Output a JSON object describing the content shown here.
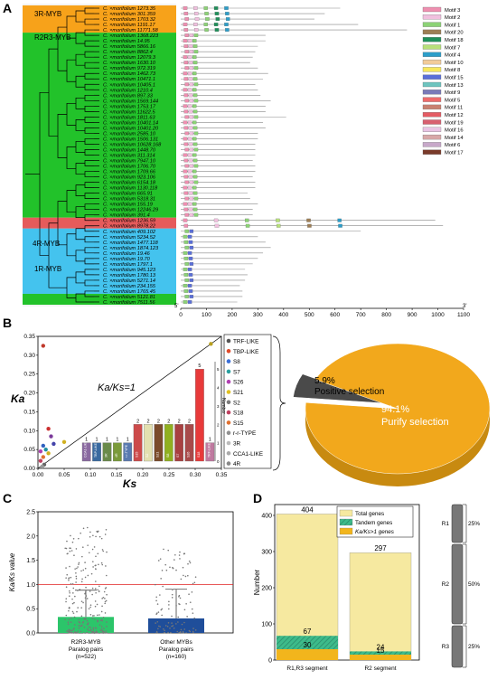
{
  "panels": {
    "a": {
      "letter": "A"
    },
    "b": {
      "letter": "B"
    },
    "c": {
      "letter": "C"
    },
    "d": {
      "letter": "D"
    }
  },
  "colors": {
    "orange": "#f7a21a",
    "green": "#22c22a",
    "red": "#e65b5b",
    "blue": "#44c3ee",
    "darkblue": "#1f4e9a",
    "pale_yellow": "#f6e9a0",
    "gold": "#f2b51c"
  },
  "panel_a": {
    "groups": [
      {
        "label": "3R-MYB",
        "color": "#f7a21a"
      },
      {
        "label": "R2R3-MYB",
        "color": "#22c22a"
      },
      {
        "label": "4R-MYB",
        "color": "#e65b5b"
      },
      {
        "label": "1R-MYB",
        "color": "#44c3ee"
      }
    ],
    "species_prefix": "C. ×morifolium",
    "genes": [
      "1273.35",
      "301.359",
      "1703.32",
      "1191.17",
      "11771.58",
      "1368.223",
      "14.95",
      "5866.16",
      "8862.4",
      "12079.3",
      "1630.10",
      "972.319",
      "1462.73",
      "10471.1",
      "10405.1",
      "1210.4",
      "897.33",
      "1569.144",
      "1753.17",
      "11622.5",
      "1811.63",
      "10401.14",
      "10401.20",
      "2585.10",
      "1506.131",
      "10628.168",
      "1448.70",
      "311.314",
      "7947.10",
      "1706.70",
      "1709.66",
      "923.106",
      "6154.18",
      "1130.118",
      "665.91",
      "5318.31",
      "155.19",
      "12246.29",
      "391.4",
      "1236.59",
      "8978.22",
      "409.102",
      "5234.52",
      "1477.118",
      "1874.123",
      "19.46",
      "19.70",
      "1797.1",
      "945.123",
      "1780.13",
      "5271.14",
      "234.155",
      "1765.45",
      "5121.81",
      "7511.56"
    ],
    "motifs": [
      "Motif 3",
      "Motif 2",
      "Motif 1",
      "Motif 20",
      "Motif 18",
      "Motif 7",
      "Motif 4",
      "Motif 10",
      "Motif 8",
      "Motif 15",
      "Motif 13",
      "Motif 9",
      "Motif 5",
      "Motif 11",
      "Motif 12",
      "Motif 19",
      "Motif 16",
      "Motif 14",
      "Motif 6",
      "Motif 17"
    ],
    "motif_colors": [
      "#ee8fb0",
      "#f0c0de",
      "#8cd276",
      "#9d7e55",
      "#1f8f5a",
      "#b7e07a",
      "#2c9ec9",
      "#f2cc9a",
      "#f7e75c",
      "#5a6fd8",
      "#6ec4bf",
      "#7a7ab8",
      "#ee6b6b",
      "#c98070",
      "#e45b63",
      "#d86070",
      "#e9c4e4",
      "#d8a8a8",
      "#c7a8c9",
      "#7a3a2a"
    ],
    "axis_ticks": [
      "0",
      "100",
      "200",
      "300",
      "400",
      "500",
      "600",
      "700",
      "800",
      "900",
      "1000",
      "1100"
    ],
    "axis_start": "5'",
    "axis_end": "3'"
  },
  "chart_data": [
    {
      "type": "scatter",
      "panel": "B-left",
      "xlabel": "Ks",
      "ylabel": "Ka",
      "xlim": [
        0,
        0.35
      ],
      "ylim": [
        0,
        0.35
      ],
      "xticks": [
        "0.00",
        "0.05",
        "0.10",
        "0.15",
        "0.20",
        "0.25",
        "0.30",
        "0.35"
      ],
      "yticks": [
        "0.00",
        "0.05",
        "0.10",
        "0.15",
        "0.20",
        "0.25",
        "0.30",
        "0.35"
      ],
      "annotation": "Ka/Ks=1",
      "legend": [
        "TRF-LIKE",
        "TBP-LIKE",
        "S8",
        "S7",
        "S26",
        "S21",
        "S2",
        "S18",
        "S15",
        "r-r-TYPE",
        "3R",
        "CCA1-LIKE",
        "4R"
      ],
      "legend_colors": [
        "#555555",
        "#e04a2a",
        "#3a6fd8",
        "#2aa0a0",
        "#b23fb2",
        "#e0c020",
        "#7a7a7a",
        "#c04060",
        "#e07030",
        "#909090",
        "#bbbbbb",
        "#aaaaaa",
        "#888888"
      ],
      "points": [
        {
          "x": 0.01,
          "y": 0.325,
          "c": "#c0392b"
        },
        {
          "x": 0.33,
          "y": 0.33,
          "c": "#b8a020"
        },
        {
          "x": 0.02,
          "y": 0.105,
          "c": "#cc3030"
        },
        {
          "x": 0.025,
          "y": 0.085,
          "c": "#7a3a9a"
        },
        {
          "x": 0.01,
          "y": 0.06,
          "c": "#3060c0"
        },
        {
          "x": 0.015,
          "y": 0.05,
          "c": "#2090a0"
        },
        {
          "x": 0.005,
          "y": 0.045,
          "c": "#b040b0"
        },
        {
          "x": 0.02,
          "y": 0.04,
          "c": "#d0b020"
        },
        {
          "x": 0.01,
          "y": 0.03,
          "c": "#e07030"
        },
        {
          "x": 0.005,
          "y": 0.02,
          "c": "#c04060"
        },
        {
          "x": 0.012,
          "y": 0.01,
          "c": "#666"
        },
        {
          "x": 0.008,
          "y": 0.005,
          "c": "#999"
        },
        {
          "x": 0.05,
          "y": 0.07,
          "c": "#d0b020"
        },
        {
          "x": 0.03,
          "y": 0.065,
          "c": "#44a"
        }
      ],
      "inset_bar": {
        "ylabel": "Number",
        "yticks": [
          "0",
          "1",
          "2",
          "3",
          "4",
          "5"
        ],
        "categories": [
          "CCA1-LIKE",
          "TBP-LIKE",
          "3R",
          "4R",
          "r-r-TYPE",
          "S15",
          "S2",
          "S21",
          "S8",
          "S7",
          "S26",
          "S18",
          "TRF-LIKE"
        ],
        "values": [
          1,
          1,
          1,
          1,
          1,
          2,
          2,
          2,
          2,
          2,
          2,
          5,
          1
        ],
        "colors": [
          "#8a6aa0",
          "#3a6aa0",
          "#6a8a4a",
          "#7a9a3a",
          "#5a7ab0",
          "#cc4a4a",
          "#e3e0b0",
          "#7a4a2a",
          "#90b020",
          "#a84040",
          "#a84a4a",
          "#e83a3a",
          "#c07aa0"
        ]
      }
    },
    {
      "type": "pie",
      "panel": "B-right",
      "slices": [
        {
          "label": "Positive selection",
          "value": 5.9,
          "text": "5.9%",
          "color": "#4a4a4a"
        },
        {
          "label": "Purify selection",
          "value": 94.1,
          "text": "94.1%",
          "color": "#f2a81c"
        }
      ]
    },
    {
      "type": "bar",
      "panel": "C",
      "ylabel": "Ka/Ks value",
      "ylim": [
        0,
        2.5
      ],
      "yticks": [
        "0.0",
        "0.5",
        "1.0",
        "1.5",
        "2.0",
        "2.5"
      ],
      "refline": 1.0,
      "categories": [
        {
          "line1": "R2R3-MYB",
          "line2": "Paralog pairs",
          "line3": "(n=522)"
        },
        {
          "line1": "Other MYBs",
          "line2": "Paralog pairs",
          "line3": "(n=160)"
        }
      ],
      "values": [
        0.33,
        0.3
      ],
      "errors": [
        0.55,
        0.6
      ],
      "colors": [
        "#2cc56a",
        "#1f4e9a"
      ]
    },
    {
      "type": "bar",
      "panel": "D",
      "ylabel": "Number",
      "ylim": [
        0,
        430
      ],
      "yticks": [
        "0",
        "100",
        "200",
        "300",
        "400"
      ],
      "categories": [
        "R1,R3 segment",
        "R2 segment"
      ],
      "legend": [
        "Total genes",
        "Tandem genes",
        "Ka/Ks>1 genes"
      ],
      "series": [
        {
          "name": "Total genes",
          "values": [
            404,
            297
          ],
          "color": "#f6e9a0"
        },
        {
          "name": "Tandem genes",
          "values": [
            67,
            24
          ],
          "color": "#3dbb8a"
        },
        {
          "name": "Ka/Ks>1 genes",
          "values": [
            30,
            15
          ],
          "color": "#f2b51c"
        }
      ],
      "value_labels": [
        [
          "404",
          "67",
          "30"
        ],
        [
          "297",
          "24",
          "15"
        ]
      ],
      "domain_labels": [
        "R1",
        "R2",
        "R3"
      ],
      "domain_percents": [
        "25%",
        "50%",
        "25%"
      ]
    }
  ]
}
